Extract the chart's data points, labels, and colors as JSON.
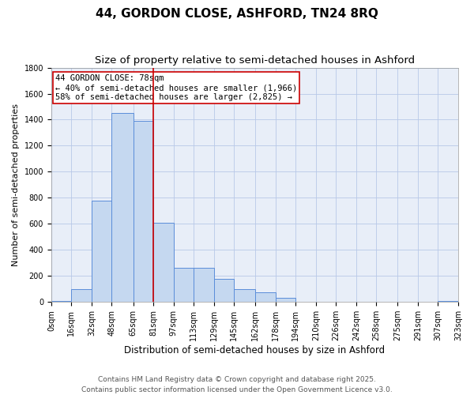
{
  "title1": "44, GORDON CLOSE, ASHFORD, TN24 8RQ",
  "title2": "Size of property relative to semi-detached houses in Ashford",
  "xlabel": "Distribution of semi-detached houses by size in Ashford",
  "ylabel": "Number of semi-detached properties",
  "annotation_title": "44 GORDON CLOSE: 78sqm",
  "annotation_line1": "← 40% of semi-detached houses are smaller (1,966)",
  "annotation_line2": "58% of semi-detached houses are larger (2,825) →",
  "footer1": "Contains HM Land Registry data © Crown copyright and database right 2025.",
  "footer2": "Contains public sector information licensed under the Open Government Licence v3.0.",
  "property_size": 78,
  "bar_edges": [
    0,
    16,
    32,
    48,
    65,
    81,
    97,
    113,
    129,
    145,
    162,
    178,
    194,
    210,
    226,
    242,
    258,
    275,
    291,
    307,
    323
  ],
  "bar_labels": [
    "0sqm",
    "16sqm",
    "32sqm",
    "48sqm",
    "65sqm",
    "81sqm",
    "97sqm",
    "113sqm",
    "129sqm",
    "145sqm",
    "162sqm",
    "178sqm",
    "194sqm",
    "210sqm",
    "226sqm",
    "242sqm",
    "258sqm",
    "275sqm",
    "291sqm",
    "307sqm",
    "323sqm"
  ],
  "bar_heights": [
    5,
    100,
    775,
    1450,
    1390,
    610,
    260,
    260,
    180,
    100,
    75,
    30,
    0,
    0,
    0,
    0,
    0,
    0,
    0,
    5
  ],
  "bar_color": "#c5d8f0",
  "bar_edge_color": "#5b8dd9",
  "vline_color": "#cc0000",
  "vline_x": 81,
  "ylim": [
    0,
    1800
  ],
  "yticks": [
    0,
    200,
    400,
    600,
    800,
    1000,
    1200,
    1400,
    1600,
    1800
  ],
  "grid_color": "#b8c8e8",
  "background_color": "#e8eef8",
  "box_color": "#cc0000",
  "title_fontsize": 11,
  "subtitle_fontsize": 9.5,
  "tick_fontsize": 7,
  "ylabel_fontsize": 8,
  "xlabel_fontsize": 8.5,
  "annotation_fontsize": 7.5,
  "footer_fontsize": 6.5
}
